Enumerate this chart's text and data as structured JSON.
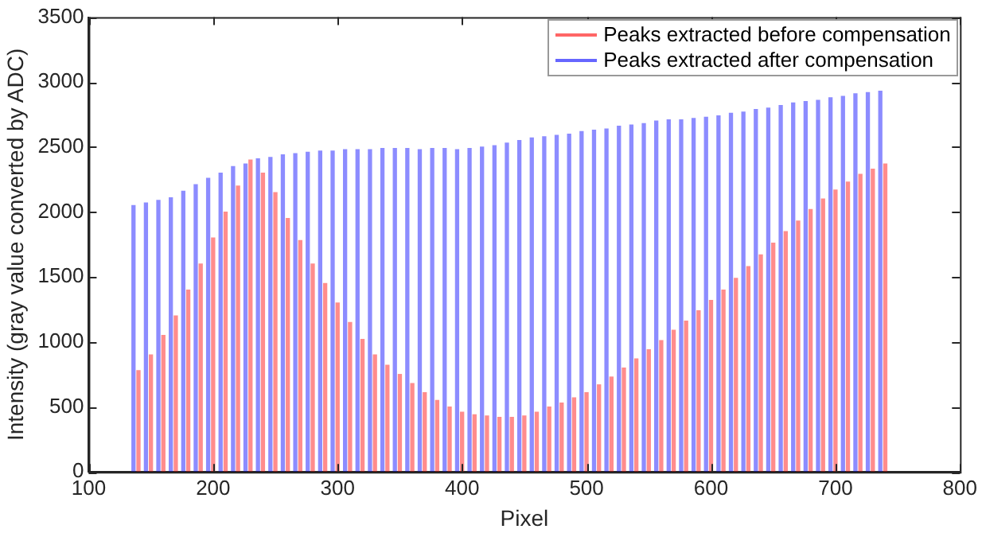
{
  "chart_data": {
    "type": "bar",
    "xlabel": "Pixel",
    "ylabel": "Intensity (gray value converted by ADC)",
    "x": [
      140,
      150,
      160,
      170,
      180,
      190,
      200,
      210,
      220,
      230,
      240,
      250,
      260,
      270,
      280,
      290,
      300,
      310,
      320,
      330,
      340,
      350,
      360,
      370,
      380,
      390,
      400,
      410,
      420,
      430,
      440,
      450,
      460,
      470,
      480,
      490,
      500,
      510,
      520,
      530,
      540,
      550,
      560,
      570,
      580,
      590,
      600,
      610,
      620,
      630,
      640,
      650,
      660,
      670,
      680,
      690,
      700,
      710,
      720,
      730,
      740
    ],
    "series": [
      {
        "name": "Peaks extracted before compensation",
        "color": "#ff0000",
        "values": [
          780,
          900,
          1050,
          1200,
          1400,
          1600,
          1800,
          2000,
          2200,
          2400,
          2300,
          2150,
          1950,
          1780,
          1600,
          1450,
          1300,
          1150,
          1020,
          900,
          820,
          750,
          680,
          610,
          550,
          500,
          460,
          440,
          430,
          420,
          420,
          430,
          460,
          500,
          530,
          570,
          610,
          670,
          730,
          800,
          870,
          940,
          1010,
          1090,
          1160,
          1240,
          1320,
          1400,
          1490,
          1580,
          1670,
          1760,
          1850,
          1930,
          2020,
          2100,
          2170,
          2230,
          2290,
          2330,
          2370
        ]
      },
      {
        "name": "Peaks extracted after compensation",
        "color": "#0000ff",
        "x": [
          136,
          146,
          156,
          166,
          176,
          186,
          196,
          206,
          216,
          226,
          236,
          246,
          256,
          266,
          276,
          286,
          296,
          306,
          316,
          326,
          336,
          346,
          356,
          366,
          376,
          386,
          396,
          406,
          416,
          426,
          436,
          446,
          456,
          466,
          476,
          486,
          496,
          506,
          516,
          526,
          536,
          546,
          556,
          566,
          576,
          586,
          596,
          606,
          616,
          626,
          636,
          646,
          656,
          666,
          676,
          686,
          696,
          706,
          716,
          726,
          736
        ],
        "values": [
          2050,
          2070,
          2090,
          2110,
          2160,
          2210,
          2260,
          2300,
          2350,
          2370,
          2410,
          2420,
          2440,
          2450,
          2460,
          2470,
          2470,
          2480,
          2480,
          2480,
          2490,
          2490,
          2490,
          2480,
          2490,
          2490,
          2480,
          2490,
          2500,
          2510,
          2530,
          2550,
          2570,
          2580,
          2590,
          2600,
          2620,
          2630,
          2640,
          2660,
          2670,
          2680,
          2700,
          2710,
          2710,
          2720,
          2730,
          2740,
          2760,
          2770,
          2790,
          2800,
          2820,
          2840,
          2850,
          2860,
          2880,
          2890,
          2910,
          2920,
          2930
        ]
      }
    ],
    "xlim": [
      100,
      800
    ],
    "xticks": [
      100,
      200,
      300,
      400,
      500,
      600,
      700,
      800
    ],
    "ylim": [
      0,
      3500
    ],
    "yticks": [
      0,
      500,
      1000,
      1500,
      2000,
      2500,
      3000,
      3500
    ],
    "grid": false,
    "legend": "top right"
  }
}
